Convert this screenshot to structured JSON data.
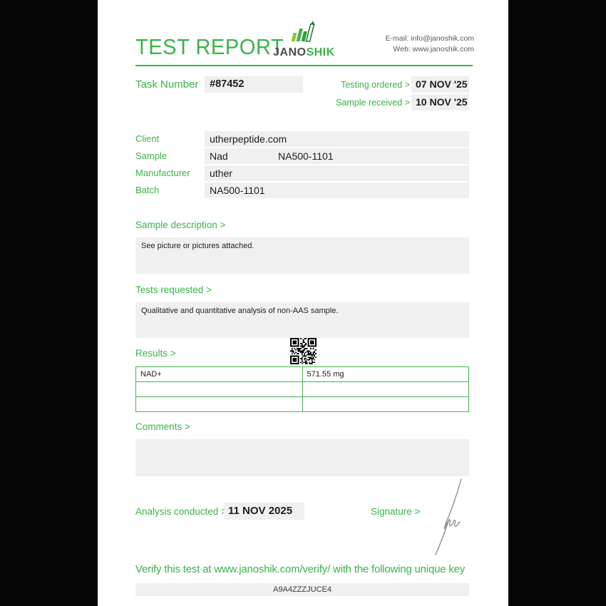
{
  "header": {
    "title": "TEST REPORT",
    "logo": {
      "jano": "JANO",
      "shik": "SHIK"
    },
    "contact": {
      "email_line": "E-mail: info@janoshik.com",
      "web_line": "Web: www.janoshik.com"
    }
  },
  "task": {
    "label": "Task Number",
    "number": "#87452",
    "testing_ordered_label": "Testing ordered >",
    "testing_ordered": "07 NOV '25",
    "sample_received_label": "Sample received >",
    "sample_received": "10 NOV '25"
  },
  "info": {
    "client_label": "Client",
    "client": "utherpeptide.com",
    "sample_label": "Sample",
    "sample_name": "Nad",
    "sample_code": "NA500-1101",
    "manufacturer_label": "Manufacturer",
    "manufacturer": "uther",
    "batch_label": "Batch",
    "batch": "NA500-1101"
  },
  "sections": {
    "sample_description_label": "Sample description >",
    "sample_description": "See picture or pictures attached.",
    "tests_requested_label": "Tests requested >",
    "tests_requested": "Qualitative and quantitative analysis of non-AAS sample.",
    "results_label": "Results >",
    "comments_label": "Comments >",
    "comments": ""
  },
  "results_table": {
    "rows": [
      {
        "name": "NAD+",
        "value": "571.55 mg"
      },
      {
        "name": "",
        "value": ""
      },
      {
        "name": "",
        "value": ""
      }
    ]
  },
  "footer": {
    "analysis_label": "Analysis conducted >",
    "analysis_date": "11 NOV 2025",
    "signature_label": "Signature >",
    "verify_text": "Verify this test at www.janoshik.com/verify/ with the following unique key",
    "unique_key": "A9A4ZZZJUCE4"
  },
  "colors": {
    "green": "#3cb34a",
    "table_border": "#4caf50",
    "box_gray": "#f0f0f0",
    "dark_text": "#1d1d1b"
  }
}
